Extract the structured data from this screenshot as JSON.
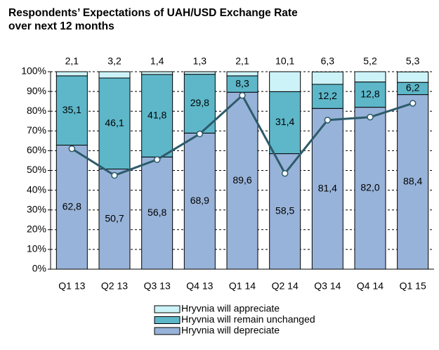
{
  "chart_data": {
    "type": "stacked-bar-line",
    "title": [
      "Respondents’ Expectations of UAH/USD Exchange Rate",
      "over next 12 months"
    ],
    "categories": [
      "Q1 13",
      "Q2 13",
      "Q3 13",
      "Q4 13",
      "Q1 14",
      "Q2 14",
      "Q3 14",
      "Q4 14",
      "Q1 15"
    ],
    "series": [
      {
        "name": "Hryvnia will depreciate",
        "color": "#98b3d9",
        "values": [
          62.8,
          50.7,
          56.8,
          68.9,
          89.6,
          58.5,
          81.4,
          82.0,
          88.4
        ],
        "value_labels": [
          "62,8",
          "50,7",
          "56,8",
          "68,9",
          "89,6",
          "58,5",
          "81,4",
          "82,0",
          "88,4"
        ]
      },
      {
        "name": "Hryvnia will remain unchanged",
        "color": "#5db7c9",
        "values": [
          35.1,
          46.1,
          41.8,
          29.8,
          8.3,
          31.4,
          12.2,
          12.8,
          6.2
        ],
        "value_labels": [
          "35,1",
          "46,1",
          "41,8",
          "29,8",
          "8,3",
          "31,4",
          "12,2",
          "12,8",
          "6,2"
        ]
      },
      {
        "name": "Hryvnia will appreciate",
        "color": "#ccf3f7",
        "values": [
          2.1,
          3.2,
          1.4,
          1.3,
          2.1,
          10.1,
          6.3,
          5.2,
          5.3
        ],
        "value_labels": [
          "2,1",
          "3,2",
          "1,4",
          "1,3",
          "2,1",
          "10,1",
          "6,3",
          "5,2",
          "5,3"
        ]
      }
    ],
    "line": {
      "color": "#2d5b6b",
      "values": [
        61,
        47.5,
        55.5,
        68.5,
        88,
        48.5,
        75.5,
        77,
        84
      ]
    },
    "ylim": [
      0,
      100
    ],
    "yticks": [
      {
        "value": 0,
        "label": "0%"
      },
      {
        "value": 10,
        "label": "10%"
      },
      {
        "value": 20,
        "label": "20%"
      },
      {
        "value": 30,
        "label": "30%"
      },
      {
        "value": 40,
        "label": "40%"
      },
      {
        "value": 50,
        "label": "50%"
      },
      {
        "value": 60,
        "label": "60%"
      },
      {
        "value": 70,
        "label": "70%"
      },
      {
        "value": 80,
        "label": "80%"
      },
      {
        "value": 90,
        "label": "90%"
      },
      {
        "value": 100,
        "label": "100%"
      }
    ],
    "grid": true,
    "legend": "bottom"
  }
}
